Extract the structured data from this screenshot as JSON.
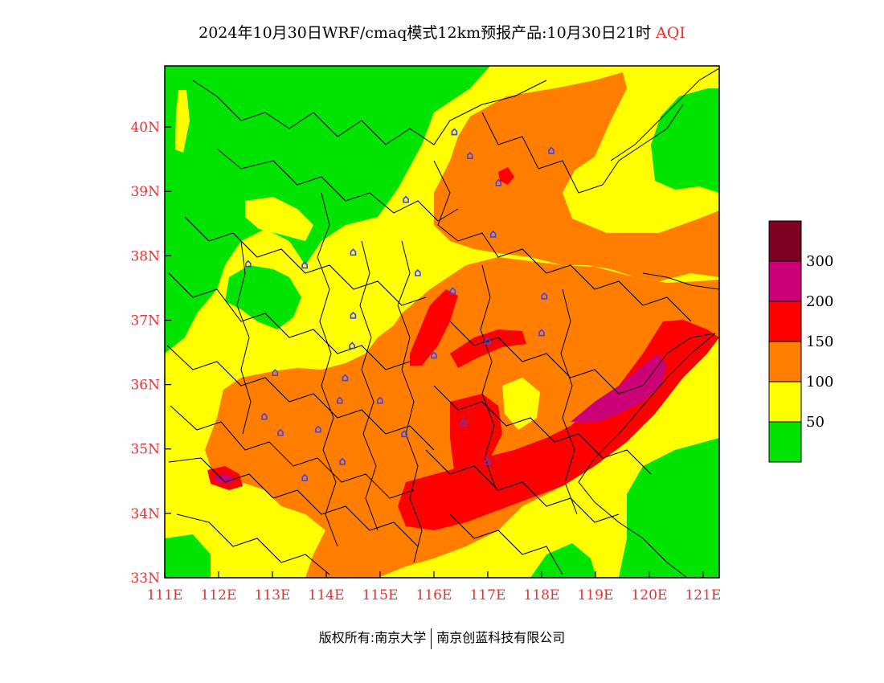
{
  "title": {
    "main": "2024年10月30日WRF/cmaq模式12km预报产品:10月30日21时",
    "variable": "AQI"
  },
  "axes": {
    "x_ticks": [
      "111E",
      "112E",
      "113E",
      "114E",
      "115E",
      "116E",
      "117E",
      "118E",
      "119E",
      "120E",
      "121E"
    ],
    "y_ticks": [
      "33N",
      "34N",
      "35N",
      "36N",
      "37N",
      "38N",
      "39N",
      "40N"
    ],
    "lon_range": [
      111,
      121.3
    ],
    "lat_range": [
      33,
      40.95
    ],
    "tick_color": "#e83030"
  },
  "legend": {
    "levels": [
      {
        "label": "50",
        "color": "#00e400"
      },
      {
        "label": "100",
        "color": "#ffff00"
      },
      {
        "label": "150",
        "color": "#ff7e00"
      },
      {
        "label": "200",
        "color": "#ff0000"
      },
      {
        "label": "300",
        "color": "#cc0077"
      },
      {
        "label": "",
        "color": "#7e0023"
      }
    ],
    "colors": {
      "good": "#00e400",
      "moderate": "#ffff00",
      "usg": "#ff7e00",
      "unhealthy": "#ff0000",
      "very_unhealthy": "#cc0077",
      "hazardous": "#7e0023"
    }
  },
  "stations": [
    [
      116.38,
      39.92
    ],
    [
      116.67,
      39.55
    ],
    [
      117.2,
      39.13
    ],
    [
      118.18,
      39.63
    ],
    [
      117.1,
      38.33
    ],
    [
      115.48,
      38.87
    ],
    [
      114.5,
      38.05
    ],
    [
      113.6,
      37.85
    ],
    [
      112.55,
      37.87
    ],
    [
      115.7,
      37.73
    ],
    [
      116.35,
      37.45
    ],
    [
      114.5,
      37.07
    ],
    [
      114.48,
      36.6
    ],
    [
      116.0,
      36.45
    ],
    [
      117.0,
      36.67
    ],
    [
      118.05,
      37.37
    ],
    [
      118.0,
      36.8
    ],
    [
      114.35,
      36.1
    ],
    [
      113.05,
      36.18
    ],
    [
      115.0,
      35.75
    ],
    [
      114.25,
      35.75
    ],
    [
      112.85,
      35.5
    ],
    [
      113.85,
      35.3
    ],
    [
      113.15,
      35.25
    ],
    [
      115.45,
      35.23
    ],
    [
      116.55,
      35.4
    ],
    [
      117.0,
      34.8
    ],
    [
      114.3,
      34.8
    ],
    [
      113.6,
      34.55
    ]
  ],
  "footer": {
    "copyright_prefix": "版权所有:",
    "owner1": "南京大学",
    "owner2": "南京创蓝科技有限公司"
  }
}
